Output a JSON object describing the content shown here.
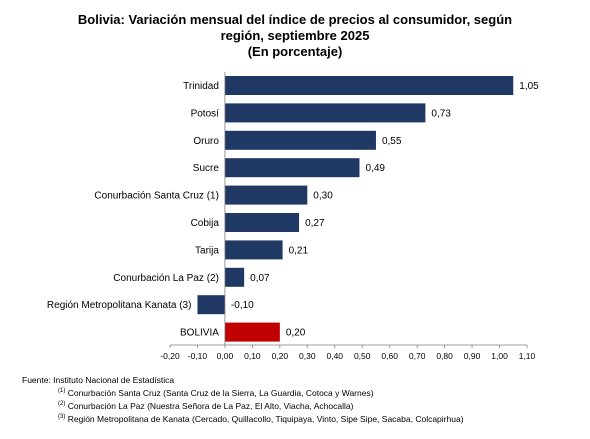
{
  "chart_data": {
    "type": "bar",
    "orientation": "horizontal",
    "title_lines": [
      "Bolivia: Variación mensual del índice de precios al consumidor, según",
      "región, septiembre 2025",
      "(En porcentaje)"
    ],
    "categories": [
      "Trinidad",
      "Potosí",
      "Oruro",
      "Sucre",
      "Conurbación Santa Cruz (1)",
      "Cobija",
      "Tarija",
      "Conurbación La Paz (2)",
      "Región Metropolitana Kanata (3)",
      "BOLIVIA"
    ],
    "values": [
      1.05,
      0.73,
      0.55,
      0.49,
      0.3,
      0.27,
      0.21,
      0.07,
      -0.1,
      0.2
    ],
    "value_labels": [
      "1,05",
      "0,73",
      "0,55",
      "0,49",
      "0,30",
      "0,27",
      "0,21",
      "0,07",
      "-0,10",
      "0,20"
    ],
    "xlim": [
      -0.2,
      1.1
    ],
    "ticks": [
      -0.2,
      -0.1,
      0.0,
      0.1,
      0.2,
      0.3,
      0.4,
      0.5,
      0.6,
      0.7,
      0.8,
      0.9,
      1.0,
      1.1
    ],
    "tick_labels": [
      "-0,20",
      "-0,10",
      "0,00",
      "0,10",
      "0,20",
      "0,30",
      "0,40",
      "0,50",
      "0,60",
      "0,70",
      "0,80",
      "0,90",
      "1,00",
      "1,10"
    ],
    "bar_color": "#1f3864",
    "highlight_category": "BOLIVIA",
    "highlight_color": "#c00000",
    "grid": false,
    "legend": "none"
  },
  "footer": {
    "source": "Fuente: Instituto Nacional de Estadística",
    "notes": [
      {
        "num": "(1)",
        "text": "Conurbación Santa Cruz (Santa Cruz de la Sierra, La Guardia, Cotoca y Warnes)"
      },
      {
        "num": "(2)",
        "text": "Conurbación La Paz (Nuestra Señora de La Paz, El Alto, Viacha, Achocalla)"
      },
      {
        "num": "(3)",
        "text": "Región Metropolitana de Kanata (Cercado, Quillacollo, Tiquipaya, Vinto, Sipe Sipe, Sacaba, Colcapirhua)"
      }
    ]
  }
}
